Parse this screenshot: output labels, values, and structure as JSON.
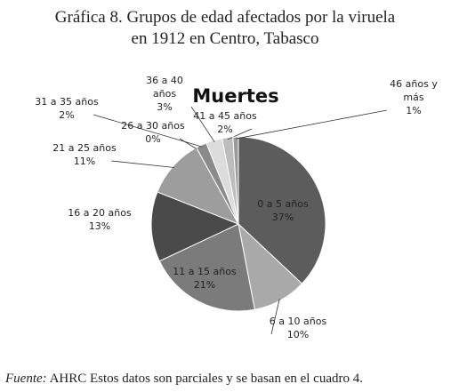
{
  "chart_data": {
    "type": "pie",
    "title_lines": [
      "Gráfica 8. Grupos de edad afectados por la viruela",
      "en 1912 en Centro, Tabasco"
    ],
    "subtitle": "Muertes",
    "categories": [
      "0 a 5 años",
      "6 a 10 años",
      "11 a 15 años",
      "16 a 20 años",
      "21 a 25 años",
      "26 a 30 años",
      "31 a 35 años",
      "36 a 40 años",
      "41 a 45 años",
      "46 años y más"
    ],
    "values": [
      37,
      10,
      21,
      13,
      11,
      0,
      2,
      3,
      2,
      1
    ],
    "value_labels": [
      "37%",
      "10%",
      "21%",
      "13%",
      "11%",
      "0%",
      "2%",
      "3%",
      "2%",
      "1%"
    ],
    "colors": [
      "#5c5c5c",
      "#a9a9a9",
      "#7b7b7b",
      "#4a4a4a",
      "#9d9d9d",
      "#6a6a6a",
      "#8a8a8a",
      "#dcdcdc",
      "#bdbdbd",
      "#9a9a9a"
    ],
    "source_label": "Fuente:",
    "source_text": "AHRC Estos datos son parciales y se basan en el cuadro 4."
  }
}
